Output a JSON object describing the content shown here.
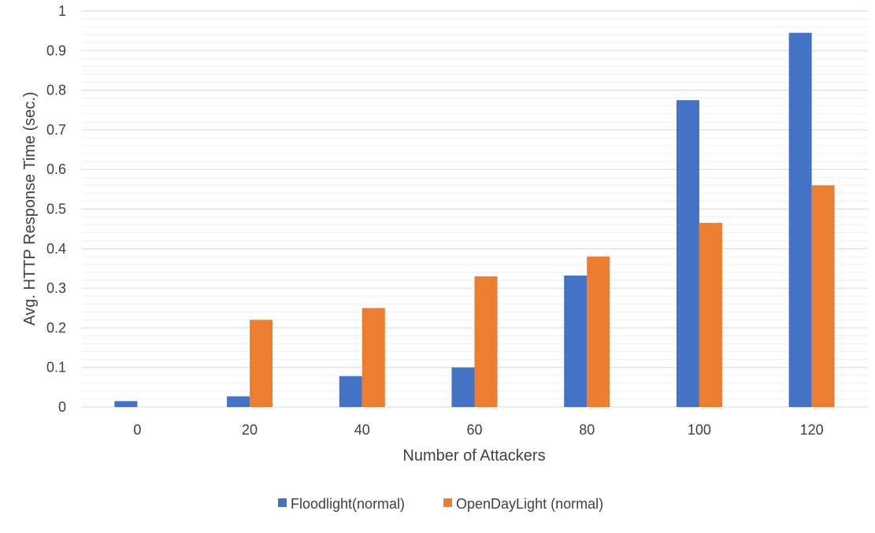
{
  "chart_data": {
    "type": "bar",
    "title": "",
    "xlabel": "Number of Attackers",
    "ylabel": "Avg. HTTP Response Time (sec.)",
    "categories": [
      "0",
      "20",
      "40",
      "60",
      "80",
      "100",
      "120"
    ],
    "ylim": [
      0,
      1
    ],
    "y_ticks": [
      "0",
      "0.1",
      "0.2",
      "0.3",
      "0.4",
      "0.5",
      "0.6",
      "0.7",
      "0.8",
      "0.9",
      "1"
    ],
    "grid": "major and minor horizontal gridlines",
    "legend_position": "bottom",
    "series": [
      {
        "name": "Floodlight(normal)",
        "color": "#4472C4",
        "values": [
          0.015,
          0.027,
          0.078,
          0.1,
          0.332,
          0.775,
          0.945
        ]
      },
      {
        "name": "OpenDayLight (normal)",
        "color": "#ED7D31",
        "values": [
          0,
          0.22,
          0.25,
          0.33,
          0.38,
          0.465,
          0.56
        ]
      }
    ]
  }
}
